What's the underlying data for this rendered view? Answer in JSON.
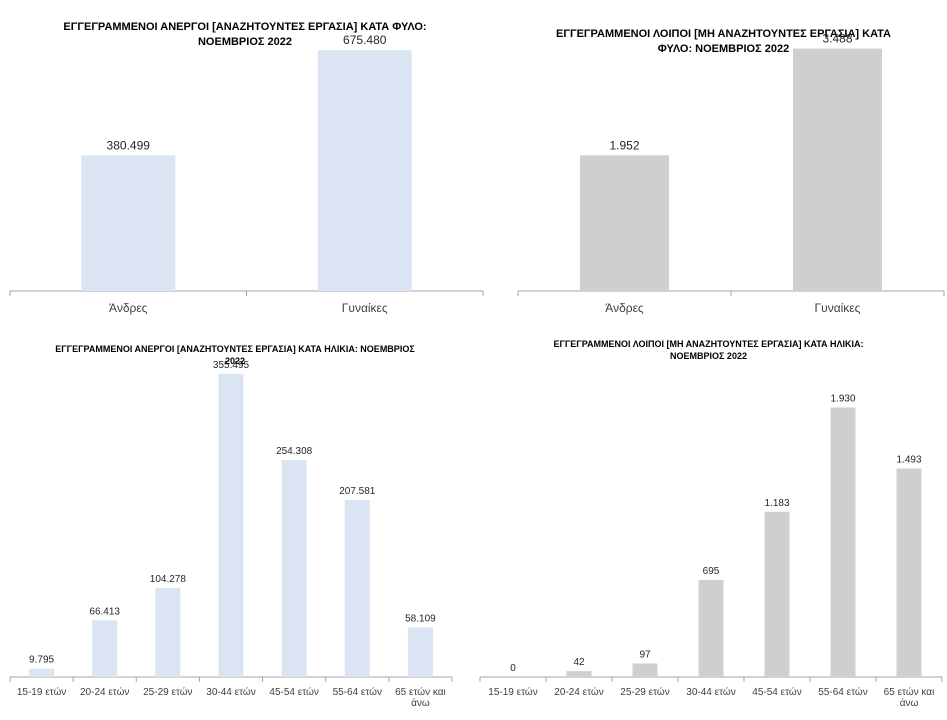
{
  "chart_data": [
    {
      "type": "bar",
      "title": "ΕΓΓΕΓΡΑΜΜΕΝΟΙ ΑΝΕΡΓΟΙ [ΑΝΑΖΗΤΟΥΝΤΕΣ ΕΡΓΑΣΙΑ]  ΚΑΤΑ ΦΥΛΟ:\nΝΟΕΜΒΡΙΟΣ 2022",
      "categories": [
        "Άνδρες",
        "Γυναίκες"
      ],
      "values": [
        380499,
        675480
      ],
      "data_labels": [
        "380.499",
        "675.480"
      ],
      "bar_color": "#dbe4f3",
      "ylim": [
        0,
        760000
      ],
      "grid": false,
      "xlabel": "",
      "ylabel": ""
    },
    {
      "type": "bar",
      "title": "ΕΓΓΕΓΡΑΜΜΕΝΟΙ ΛΟΙΠΟΙ [ΜΗ ΑΝΑΖΗΤΟΥΝΤΕΣ ΕΡΓΑΣΙΑ] ΚΑΤΑ\nΦΥΛΟ: ΝΟΕΜΒΡΙΟΣ 2022",
      "categories": [
        "Άνδρες",
        "Γυναίκες"
      ],
      "values": [
        1952,
        3488
      ],
      "data_labels": [
        "1.952",
        "3.488"
      ],
      "bar_color": "#d0cece",
      "ylim": [
        0,
        3900
      ],
      "grid": false,
      "xlabel": "",
      "ylabel": ""
    },
    {
      "type": "bar",
      "title": "ΕΓΓΕΓΡΑΜΜΕΝΟΙ ΑΝΕΡΓΟΙ [ΑΝΑΖΗΤΟΥΝΤΕΣ ΕΡΓΑΣΙΑ] ΚΑΤΑ ΗΛΙΚΙΑ: ΝΟΕΜΒΡΙΟΣ\n2022",
      "categories": [
        "15-19 ετών",
        "20-24 ετών",
        "25-29 ετών",
        "30-44 ετών",
        "45-54 ετών",
        "55-64 ετών",
        "65 ετών και\nάνω"
      ],
      "values": [
        9795,
        66413,
        104278,
        355495,
        254308,
        207581,
        58109
      ],
      "data_labels": [
        "9.795",
        "66.413",
        "104.278",
        "355.495",
        "254.308",
        "207.581",
        "58.109"
      ],
      "bar_color": "#dbe4f3",
      "ylim": [
        0,
        380000
      ],
      "grid": false,
      "xlabel": "",
      "ylabel": ""
    },
    {
      "type": "bar",
      "title": "ΕΓΓΕΓΡΑΜΜΕΝΟΙ ΛΟΙΠΟΙ [ΜΗ ΑΝΑΖΗΤΟΥΝΤΕΣ ΕΡΓΑΣΙΑ] ΚΑΤΑ ΗΛΙΚΙΑ:\nΝΟΕΜΒΡΙΟΣ  2022",
      "categories": [
        "15-19 ετών",
        "20-24 ετών",
        "25-29 ετών",
        "30-44 ετών",
        "45-54 ετών",
        "55-64 ετών",
        "65 ετών και\nάνω"
      ],
      "values": [
        0,
        42,
        97,
        695,
        1183,
        1930,
        1493
      ],
      "data_labels": [
        "0",
        "42",
        "97",
        "695",
        "1.183",
        "1.930",
        "1.493"
      ],
      "bar_color": "#d0cece",
      "ylim": [
        0,
        2320
      ],
      "grid": false,
      "xlabel": "",
      "ylabel": ""
    }
  ]
}
